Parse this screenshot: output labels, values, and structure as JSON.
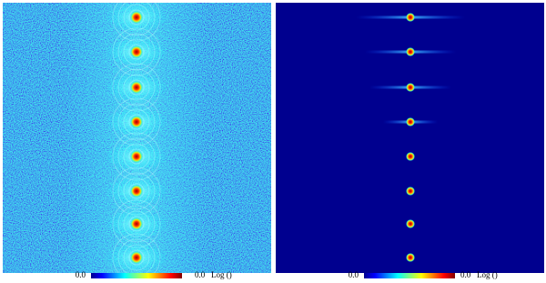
{
  "panels": [
    {
      "colorbar": {
        "min_label": "0.0",
        "max_label": "0.0",
        "unit_label": "Log ()"
      }
    },
    {
      "colorbar": {
        "min_label": "0.0",
        "max_label": "0.0",
        "unit_label": "Log ()"
      }
    }
  ]
}
